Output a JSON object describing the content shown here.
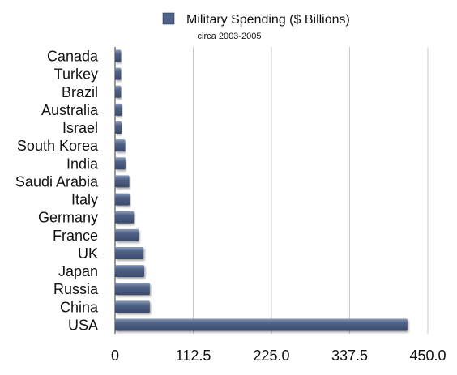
{
  "chart_data": {
    "type": "bar",
    "orientation": "horizontal",
    "title": "",
    "legend": {
      "label": "Military Spending ($ Billions)",
      "color": "#4f6287",
      "position": "top"
    },
    "subtitle": "circa 2003-2005",
    "categories": [
      "USA",
      "China",
      "Russia",
      "Japan",
      "UK",
      "France",
      "Germany",
      "Italy",
      "Saudi Arabia",
      "India",
      "South Korea",
      "Israel",
      "Australia",
      "Brazil",
      "Turkey",
      "Canada"
    ],
    "values": [
      420.7,
      50.0,
      50.0,
      42.0,
      41.0,
      34.0,
      27.0,
      21.0,
      20.5,
      15.0,
      14.5,
      9.5,
      10.0,
      8.5,
      8.5,
      8.5
    ],
    "xlim": [
      0,
      450
    ],
    "xticks": [
      "0",
      "112.5",
      "225.0",
      "337.5",
      "450.0"
    ],
    "xtick_values": [
      0,
      112.5,
      225,
      337.5,
      450
    ],
    "grid": "vertical",
    "bar_color": "#4f6287"
  }
}
